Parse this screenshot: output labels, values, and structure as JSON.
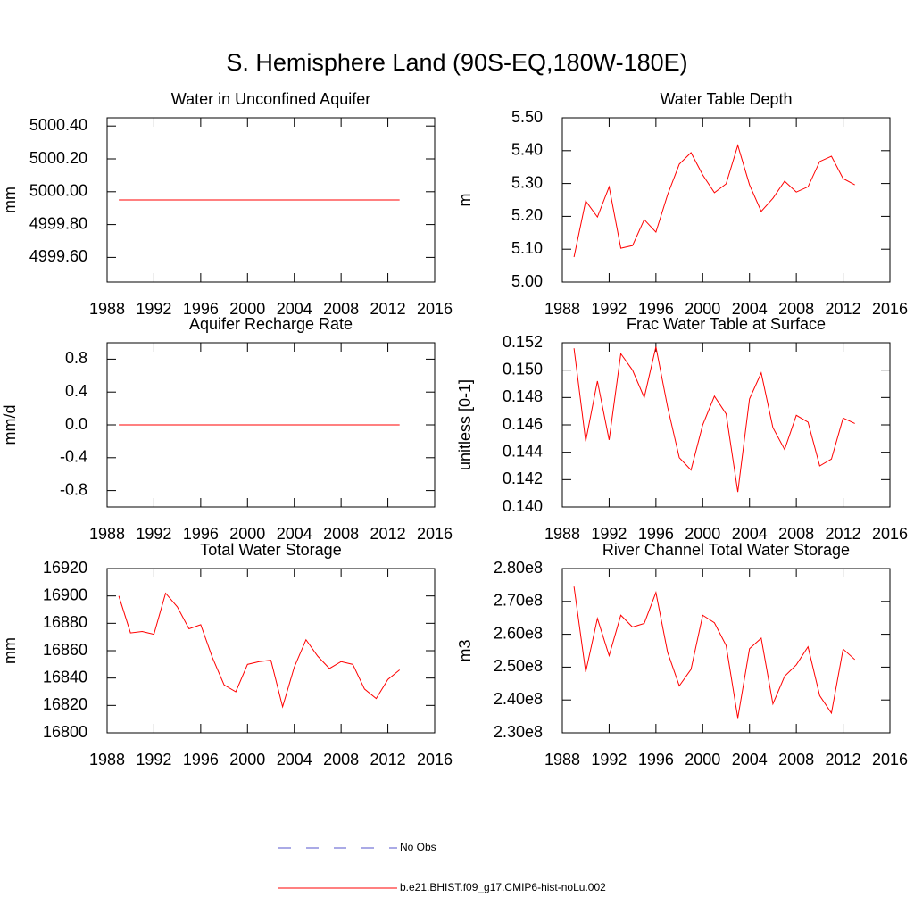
{
  "title": "S. Hemisphere Land (90S-EQ,180W-180E)",
  "legend": [
    {
      "name": "No Obs",
      "color": "#5555cc",
      "dash": true
    },
    {
      "name": "b.e21.BHIST.f09_g17.CMIP6-hist-noLu.002",
      "color": "#ff0000",
      "dash": false
    }
  ],
  "chart_data": [
    {
      "type": "line",
      "title": "Water in Unconfined Aquifer",
      "ylabel": "mm",
      "x": [
        1989,
        1990,
        1991,
        1992,
        1993,
        1994,
        1995,
        1996,
        1997,
        1998,
        1999,
        2000,
        2001,
        2002,
        2003,
        2004,
        2005,
        2006,
        2007,
        2008,
        2009,
        2010,
        2011,
        2012,
        2013
      ],
      "xlim": [
        1988,
        2016
      ],
      "xticks": [
        1988,
        1992,
        1996,
        2000,
        2004,
        2008,
        2012,
        2016
      ],
      "ylim": [
        4999.45,
        5000.45
      ],
      "yticks": [
        {
          "value": 4999.6,
          "label": "4999.60"
        },
        {
          "value": 4999.8,
          "label": "4999.80"
        },
        {
          "value": 5000.0,
          "label": "5000.00"
        },
        {
          "value": 5000.2,
          "label": "5000.20"
        },
        {
          "value": 5000.4,
          "label": "5000.40"
        }
      ],
      "series": [
        {
          "color": "#ff0000",
          "values": [
            4999.95,
            4999.95,
            4999.95,
            4999.95,
            4999.95,
            4999.95,
            4999.95,
            4999.95,
            4999.95,
            4999.95,
            4999.95,
            4999.95,
            4999.95,
            4999.95,
            4999.95,
            4999.95,
            4999.95,
            4999.95,
            4999.95,
            4999.95,
            4999.95,
            4999.95,
            4999.95,
            4999.95,
            4999.95
          ]
        }
      ]
    },
    {
      "type": "line",
      "title": "Water Table Depth",
      "ylabel": "m",
      "x": [
        1989,
        1990,
        1991,
        1992,
        1993,
        1994,
        1995,
        1996,
        1997,
        1998,
        1999,
        2000,
        2001,
        2002,
        2003,
        2004,
        2005,
        2006,
        2007,
        2008,
        2009,
        2010,
        2011,
        2012,
        2013
      ],
      "xlim": [
        1988,
        2016
      ],
      "xticks": [
        1988,
        1992,
        1996,
        2000,
        2004,
        2008,
        2012,
        2016
      ],
      "ylim": [
        5.0,
        5.5
      ],
      "yticks": [
        {
          "value": 5.0,
          "label": "5.00"
        },
        {
          "value": 5.1,
          "label": "5.10"
        },
        {
          "value": 5.2,
          "label": "5.20"
        },
        {
          "value": 5.3,
          "label": "5.30"
        },
        {
          "value": 5.4,
          "label": "5.40"
        },
        {
          "value": 5.5,
          "label": "5.50"
        }
      ],
      "series": [
        {
          "color": "#ff0000",
          "values": [
            5.076,
            5.247,
            5.198,
            5.29,
            5.103,
            5.111,
            5.19,
            5.152,
            5.266,
            5.359,
            5.394,
            5.326,
            5.272,
            5.299,
            5.416,
            5.296,
            5.215,
            5.255,
            5.307,
            5.274,
            5.29,
            5.367,
            5.383,
            5.315,
            5.296
          ]
        }
      ]
    },
    {
      "type": "line",
      "title": "Aquifer Recharge Rate",
      "ylabel": "mm/d",
      "x": [
        1989,
        1990,
        1991,
        1992,
        1993,
        1994,
        1995,
        1996,
        1997,
        1998,
        1999,
        2000,
        2001,
        2002,
        2003,
        2004,
        2005,
        2006,
        2007,
        2008,
        2009,
        2010,
        2011,
        2012,
        2013
      ],
      "xlim": [
        1988,
        2016
      ],
      "xticks": [
        1988,
        1992,
        1996,
        2000,
        2004,
        2008,
        2012,
        2016
      ],
      "ylim": [
        -1,
        1
      ],
      "yticks": [
        -0.8,
        -0.4,
        {
          "value": 0,
          "label": "0.0"
        },
        0.4,
        0.8
      ],
      "series": [
        {
          "color": "#ff0000",
          "values": [
            0,
            0,
            0,
            0,
            0,
            0,
            0,
            0,
            0,
            0,
            0,
            0,
            0,
            0,
            0,
            0,
            0,
            0,
            0,
            0,
            0,
            0,
            0,
            0,
            0
          ]
        }
      ]
    },
    {
      "type": "line",
      "title": "Frac Water Table at Surface",
      "ylabel": "unitless [0-1]",
      "x": [
        1989,
        1990,
        1991,
        1992,
        1993,
        1994,
        1995,
        1996,
        1997,
        1998,
        1999,
        2000,
        2001,
        2002,
        2003,
        2004,
        2005,
        2006,
        2007,
        2008,
        2009,
        2010,
        2011,
        2012,
        2013
      ],
      "xlim": [
        1988,
        2016
      ],
      "xticks": [
        1988,
        1992,
        1996,
        2000,
        2004,
        2008,
        2012,
        2016
      ],
      "ylim": [
        0.14,
        0.152
      ],
      "yticks": [
        {
          "value": 0.14,
          "label": "0.140"
        },
        0.142,
        0.144,
        0.146,
        0.148,
        {
          "value": 0.15,
          "label": "0.150"
        },
        0.152
      ],
      "series": [
        {
          "color": "#ff0000",
          "values": [
            0.1516,
            0.1448,
            0.1492,
            0.1449,
            0.1512,
            0.15,
            0.148,
            0.1517,
            0.1473,
            0.1436,
            0.1427,
            0.146,
            0.1481,
            0.1468,
            0.1411,
            0.1479,
            0.1498,
            0.1458,
            0.1442,
            0.1467,
            0.1462,
            0.143,
            0.1435,
            0.1465,
            0.1461
          ]
        }
      ]
    },
    {
      "type": "line",
      "title": "Total Water Storage",
      "ylabel": "mm",
      "x": [
        1989,
        1990,
        1991,
        1992,
        1993,
        1994,
        1995,
        1996,
        1997,
        1998,
        1999,
        2000,
        2001,
        2002,
        2003,
        2004,
        2005,
        2006,
        2007,
        2008,
        2009,
        2010,
        2011,
        2012,
        2013
      ],
      "xlim": [
        1988,
        2016
      ],
      "xticks": [
        1988,
        1992,
        1996,
        2000,
        2004,
        2008,
        2012,
        2016
      ],
      "ylim": [
        16800,
        16920
      ],
      "yticks": [
        16800,
        16820,
        16840,
        16860,
        16880,
        16900,
        16920
      ],
      "series": [
        {
          "color": "#ff0000",
          "values": [
            16900,
            16873,
            16874,
            16872,
            16902,
            16892,
            16876,
            16879,
            16855,
            16835,
            16830,
            16850,
            16852,
            16853,
            16819,
            16848,
            16868,
            16856,
            16847,
            16852,
            16850,
            16832,
            16825,
            16839,
            16846
          ]
        }
      ]
    },
    {
      "type": "line",
      "title": "River Channel Total Water Storage",
      "ylabel": "m3",
      "x": [
        1989,
        1990,
        1991,
        1992,
        1993,
        1994,
        1995,
        1996,
        1997,
        1998,
        1999,
        2000,
        2001,
        2002,
        2003,
        2004,
        2005,
        2006,
        2007,
        2008,
        2009,
        2010,
        2011,
        2012,
        2013
      ],
      "xlim": [
        1988,
        2016
      ],
      "xticks": [
        1988,
        1992,
        1996,
        2000,
        2004,
        2008,
        2012,
        2016
      ],
      "ylim": [
        230000000,
        280000000
      ],
      "yticks": [
        {
          "value": 230000000,
          "label": "2.30e8"
        },
        {
          "value": 240000000,
          "label": "2.40e8"
        },
        {
          "value": 250000000,
          "label": "2.50e8"
        },
        {
          "value": 260000000,
          "label": "2.60e8"
        },
        {
          "value": 270000000,
          "label": "2.70e8"
        },
        {
          "value": 280000000,
          "label": "2.80e8"
        }
      ],
      "series": [
        {
          "color": "#ff0000",
          "values": [
            274500000,
            248500000,
            264800000,
            253500000,
            265800000,
            262200000,
            263300000,
            272700000,
            254500000,
            244300000,
            249300000,
            265800000,
            263500000,
            256600000,
            234500000,
            255600000,
            258800000,
            238800000,
            247200000,
            250700000,
            256200000,
            241300000,
            236000000,
            255500000,
            252300000
          ]
        }
      ]
    }
  ]
}
